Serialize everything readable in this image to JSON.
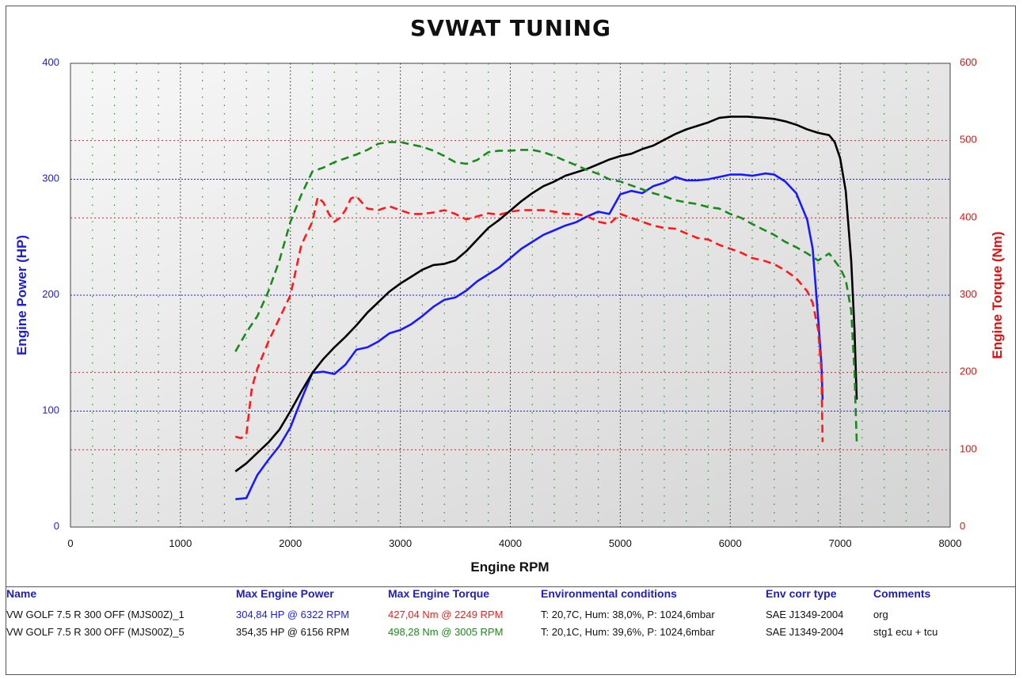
{
  "chart_data": {
    "type": "line",
    "title": "SVWAT TUNING",
    "xlabel": "Engine RPM",
    "ylabel_left": "Engine Power (HP)",
    "ylabel_right": "Engine Torque (Nm)",
    "xlim": [
      0,
      8000
    ],
    "ylim_left": [
      0,
      400
    ],
    "ylim_right": [
      0,
      600
    ],
    "xticks": [
      "0",
      "1000",
      "2000",
      "3000",
      "4000",
      "5000",
      "6000",
      "7000",
      "8000"
    ],
    "yticks_left": [
      "0",
      "100",
      "200",
      "300",
      "400"
    ],
    "yticks_right": [
      "0",
      "100",
      "200",
      "300",
      "400",
      "500",
      "600"
    ],
    "grid": true,
    "series": [
      {
        "name": "VW GOLF 7.5 R 300 OFF (MJS00Z)_1",
        "quantity": "power",
        "axis": "left",
        "color": "#1a1aff",
        "dash": "none",
        "points": [
          [
            1500,
            24
          ],
          [
            1600,
            25
          ],
          [
            1650,
            35
          ],
          [
            1700,
            45
          ],
          [
            1800,
            58
          ],
          [
            1900,
            70
          ],
          [
            2000,
            86
          ],
          [
            2100,
            110
          ],
          [
            2200,
            133
          ],
          [
            2300,
            134
          ],
          [
            2400,
            132
          ],
          [
            2500,
            140
          ],
          [
            2600,
            153
          ],
          [
            2700,
            155
          ],
          [
            2800,
            160
          ],
          [
            2900,
            167
          ],
          [
            3000,
            170
          ],
          [
            3100,
            175
          ],
          [
            3200,
            182
          ],
          [
            3300,
            190
          ],
          [
            3400,
            196
          ],
          [
            3500,
            198
          ],
          [
            3600,
            204
          ],
          [
            3700,
            212
          ],
          [
            3800,
            218
          ],
          [
            3900,
            224
          ],
          [
            4000,
            232
          ],
          [
            4100,
            240
          ],
          [
            4200,
            246
          ],
          [
            4300,
            252
          ],
          [
            4400,
            256
          ],
          [
            4500,
            260
          ],
          [
            4600,
            263
          ],
          [
            4700,
            268
          ],
          [
            4800,
            272
          ],
          [
            4900,
            270
          ],
          [
            5000,
            287
          ],
          [
            5100,
            290
          ],
          [
            5200,
            288
          ],
          [
            5300,
            294
          ],
          [
            5400,
            297
          ],
          [
            5500,
            302
          ],
          [
            5600,
            299
          ],
          [
            5700,
            299
          ],
          [
            5800,
            300
          ],
          [
            5900,
            302
          ],
          [
            6000,
            304
          ],
          [
            6100,
            304
          ],
          [
            6200,
            303
          ],
          [
            6322,
            305
          ],
          [
            6400,
            304
          ],
          [
            6500,
            298
          ],
          [
            6600,
            288
          ],
          [
            6700,
            265
          ],
          [
            6750,
            240
          ],
          [
            6800,
            180
          ],
          [
            6830,
            140
          ],
          [
            6840,
            110
          ]
        ]
      },
      {
        "name": "VW GOLF 7.5 R 300 OFF (MJS00Z)_1",
        "quantity": "torque",
        "axis": "right",
        "color": "#ff1a1a",
        "dash": "10,6",
        "points": [
          [
            1500,
            117
          ],
          [
            1550,
            115
          ],
          [
            1600,
            120
          ],
          [
            1650,
            180
          ],
          [
            1700,
            205
          ],
          [
            1800,
            240
          ],
          [
            1900,
            270
          ],
          [
            2000,
            300
          ],
          [
            2100,
            365
          ],
          [
            2200,
            395
          ],
          [
            2249,
            427
          ],
          [
            2300,
            420
          ],
          [
            2350,
            405
          ],
          [
            2400,
            395
          ],
          [
            2450,
            400
          ],
          [
            2500,
            410
          ],
          [
            2550,
            425
          ],
          [
            2600,
            428
          ],
          [
            2650,
            420
          ],
          [
            2700,
            412
          ],
          [
            2800,
            410
          ],
          [
            2900,
            415
          ],
          [
            3000,
            410
          ],
          [
            3100,
            405
          ],
          [
            3200,
            405
          ],
          [
            3300,
            407
          ],
          [
            3400,
            410
          ],
          [
            3500,
            405
          ],
          [
            3600,
            398
          ],
          [
            3700,
            402
          ],
          [
            3800,
            406
          ],
          [
            3900,
            404
          ],
          [
            4000,
            408
          ],
          [
            4100,
            410
          ],
          [
            4200,
            410
          ],
          [
            4300,
            410
          ],
          [
            4400,
            408
          ],
          [
            4500,
            405
          ],
          [
            4600,
            405
          ],
          [
            4700,
            402
          ],
          [
            4800,
            395
          ],
          [
            4900,
            392
          ],
          [
            5000,
            405
          ],
          [
            5100,
            400
          ],
          [
            5200,
            395
          ],
          [
            5300,
            390
          ],
          [
            5400,
            387
          ],
          [
            5500,
            386
          ],
          [
            5600,
            380
          ],
          [
            5700,
            374
          ],
          [
            5800,
            372
          ],
          [
            5900,
            365
          ],
          [
            6000,
            360
          ],
          [
            6100,
            355
          ],
          [
            6200,
            348
          ],
          [
            6300,
            345
          ],
          [
            6400,
            340
          ],
          [
            6500,
            332
          ],
          [
            6600,
            322
          ],
          [
            6700,
            305
          ],
          [
            6750,
            290
          ],
          [
            6800,
            255
          ],
          [
            6830,
            200
          ],
          [
            6840,
            110
          ]
        ]
      },
      {
        "name": "VW GOLF 7.5 R 300 OFF (MJS00Z)_5",
        "quantity": "power",
        "axis": "left",
        "color": "#000000",
        "dash": "none",
        "points": [
          [
            1500,
            48
          ],
          [
            1600,
            55
          ],
          [
            1700,
            64
          ],
          [
            1800,
            73
          ],
          [
            1900,
            84
          ],
          [
            2000,
            100
          ],
          [
            2100,
            117
          ],
          [
            2200,
            133
          ],
          [
            2300,
            145
          ],
          [
            2400,
            155
          ],
          [
            2500,
            164
          ],
          [
            2600,
            174
          ],
          [
            2700,
            185
          ],
          [
            2800,
            194
          ],
          [
            2900,
            203
          ],
          [
            3000,
            210
          ],
          [
            3100,
            216
          ],
          [
            3200,
            222
          ],
          [
            3300,
            226
          ],
          [
            3400,
            227
          ],
          [
            3500,
            230
          ],
          [
            3600,
            238
          ],
          [
            3700,
            248
          ],
          [
            3800,
            258
          ],
          [
            3900,
            265
          ],
          [
            4000,
            273
          ],
          [
            4100,
            281
          ],
          [
            4200,
            288
          ],
          [
            4300,
            294
          ],
          [
            4400,
            298
          ],
          [
            4500,
            303
          ],
          [
            4600,
            306
          ],
          [
            4700,
            309
          ],
          [
            4800,
            313
          ],
          [
            4900,
            317
          ],
          [
            5000,
            320
          ],
          [
            5100,
            322
          ],
          [
            5200,
            326
          ],
          [
            5300,
            329
          ],
          [
            5400,
            334
          ],
          [
            5500,
            339
          ],
          [
            5600,
            343
          ],
          [
            5700,
            346
          ],
          [
            5800,
            349
          ],
          [
            5900,
            353
          ],
          [
            6000,
            354
          ],
          [
            6156,
            354
          ],
          [
            6300,
            353
          ],
          [
            6400,
            352
          ],
          [
            6500,
            350
          ],
          [
            6600,
            347
          ],
          [
            6700,
            343
          ],
          [
            6800,
            340
          ],
          [
            6900,
            338
          ],
          [
            6950,
            332
          ],
          [
            7000,
            318
          ],
          [
            7050,
            290
          ],
          [
            7100,
            230
          ],
          [
            7130,
            170
          ],
          [
            7150,
            110
          ]
        ]
      },
      {
        "name": "VW GOLF 7.5 R 300 OFF (MJS00Z)_5",
        "quantity": "torque",
        "axis": "right",
        "color": "#1a8a1a",
        "dash": "10,6",
        "points": [
          [
            1500,
            227
          ],
          [
            1600,
            252
          ],
          [
            1700,
            273
          ],
          [
            1800,
            305
          ],
          [
            1900,
            345
          ],
          [
            2000,
            395
          ],
          [
            2100,
            430
          ],
          [
            2200,
            460
          ],
          [
            2300,
            465
          ],
          [
            2400,
            472
          ],
          [
            2500,
            477
          ],
          [
            2600,
            482
          ],
          [
            2700,
            488
          ],
          [
            2800,
            496
          ],
          [
            2900,
            498
          ],
          [
            3005,
            498
          ],
          [
            3100,
            495
          ],
          [
            3200,
            492
          ],
          [
            3300,
            487
          ],
          [
            3400,
            480
          ],
          [
            3500,
            472
          ],
          [
            3600,
            470
          ],
          [
            3700,
            475
          ],
          [
            3800,
            485
          ],
          [
            3900,
            487
          ],
          [
            4000,
            487
          ],
          [
            4100,
            488
          ],
          [
            4200,
            488
          ],
          [
            4300,
            485
          ],
          [
            4400,
            480
          ],
          [
            4500,
            474
          ],
          [
            4600,
            468
          ],
          [
            4700,
            462
          ],
          [
            4800,
            457
          ],
          [
            4900,
            450
          ],
          [
            5000,
            447
          ],
          [
            5100,
            442
          ],
          [
            5200,
            437
          ],
          [
            5300,
            432
          ],
          [
            5400,
            428
          ],
          [
            5500,
            423
          ],
          [
            5600,
            420
          ],
          [
            5700,
            418
          ],
          [
            5800,
            414
          ],
          [
            5900,
            412
          ],
          [
            6000,
            405
          ],
          [
            6100,
            400
          ],
          [
            6200,
            392
          ],
          [
            6300,
            385
          ],
          [
            6400,
            378
          ],
          [
            6500,
            369
          ],
          [
            6600,
            362
          ],
          [
            6700,
            354
          ],
          [
            6800,
            345
          ],
          [
            6900,
            354
          ],
          [
            7000,
            335
          ],
          [
            7050,
            320
          ],
          [
            7100,
            280
          ],
          [
            7130,
            200
          ],
          [
            7150,
            110
          ]
        ]
      }
    ]
  },
  "legend": {
    "headers": {
      "name": "Name",
      "power": "Max Engine Power",
      "torque": "Max Engine Torque",
      "env": "Environmental conditions",
      "corr": "Env corr type",
      "comments": "Comments"
    },
    "rows": [
      {
        "name": "VW GOLF 7.5 R 300 OFF (MJS00Z)_1",
        "power": "304,84 HP @ 6322 RPM",
        "torque": "427,04 Nm @ 2249 RPM",
        "env": "T: 20,7C, Hum: 38,0%, P: 1024,6mbar",
        "corr": "SAE J1349-2004",
        "comments": "org",
        "power_color": "#1a1aff",
        "torque_color": "#ff1a1a"
      },
      {
        "name": "VW GOLF 7.5 R 300 OFF (MJS00Z)_5",
        "power": "354,35 HP @ 6156 RPM",
        "torque": "498,28 Nm @ 3005 RPM",
        "env": "T: 20,1C, Hum: 39,6%, P: 1024,6mbar",
        "corr": "SAE J1349-2004",
        "comments": "stg1 ecu + tcu",
        "power_color": "#111111",
        "torque_color": "#1a8a1a"
      }
    ]
  }
}
